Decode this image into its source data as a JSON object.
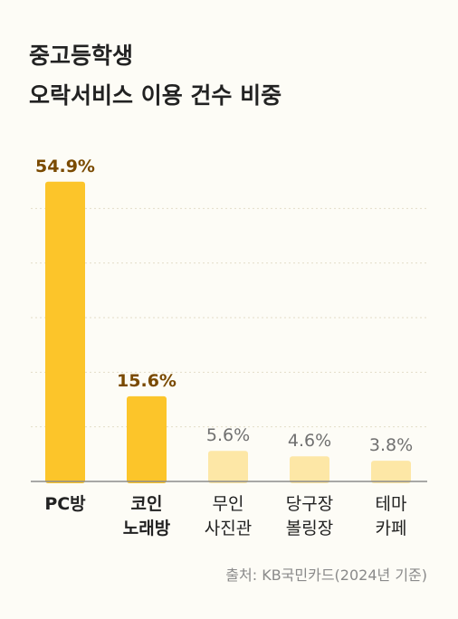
{
  "title_lines": [
    "중고등학생",
    "오락서비스 이용 건수 비중"
  ],
  "source": "출처: KB국민카드(2024년 기준)",
  "colors": {
    "highlight_bar": "#fcc52a",
    "highlight_label": "#7a4a00",
    "muted_bar": "#fde7a6",
    "muted_label": "#707070",
    "category_label": "#222222",
    "grid": "#e2ddc8",
    "axis": "#8c8c8c"
  },
  "chart_data": {
    "type": "bar",
    "title": "중고등학생 오락서비스 이용 건수 비중",
    "categories": [
      [
        "PC방"
      ],
      [
        "코인",
        "노래방"
      ],
      [
        "무인",
        "사진관"
      ],
      [
        "당구장",
        "볼링장"
      ],
      [
        "테마",
        "카페"
      ]
    ],
    "values": [
      54.9,
      15.6,
      5.6,
      4.6,
      3.8
    ],
    "value_labels": [
      "54.9%",
      "15.6%",
      "5.6%",
      "4.6%",
      "3.8%"
    ],
    "highlighted": [
      true,
      true,
      false,
      false,
      false
    ],
    "unit": "%",
    "ylim": [
      0,
      60
    ],
    "grid": true,
    "grid_style": "dotted",
    "xlabel": "",
    "ylabel": ""
  }
}
